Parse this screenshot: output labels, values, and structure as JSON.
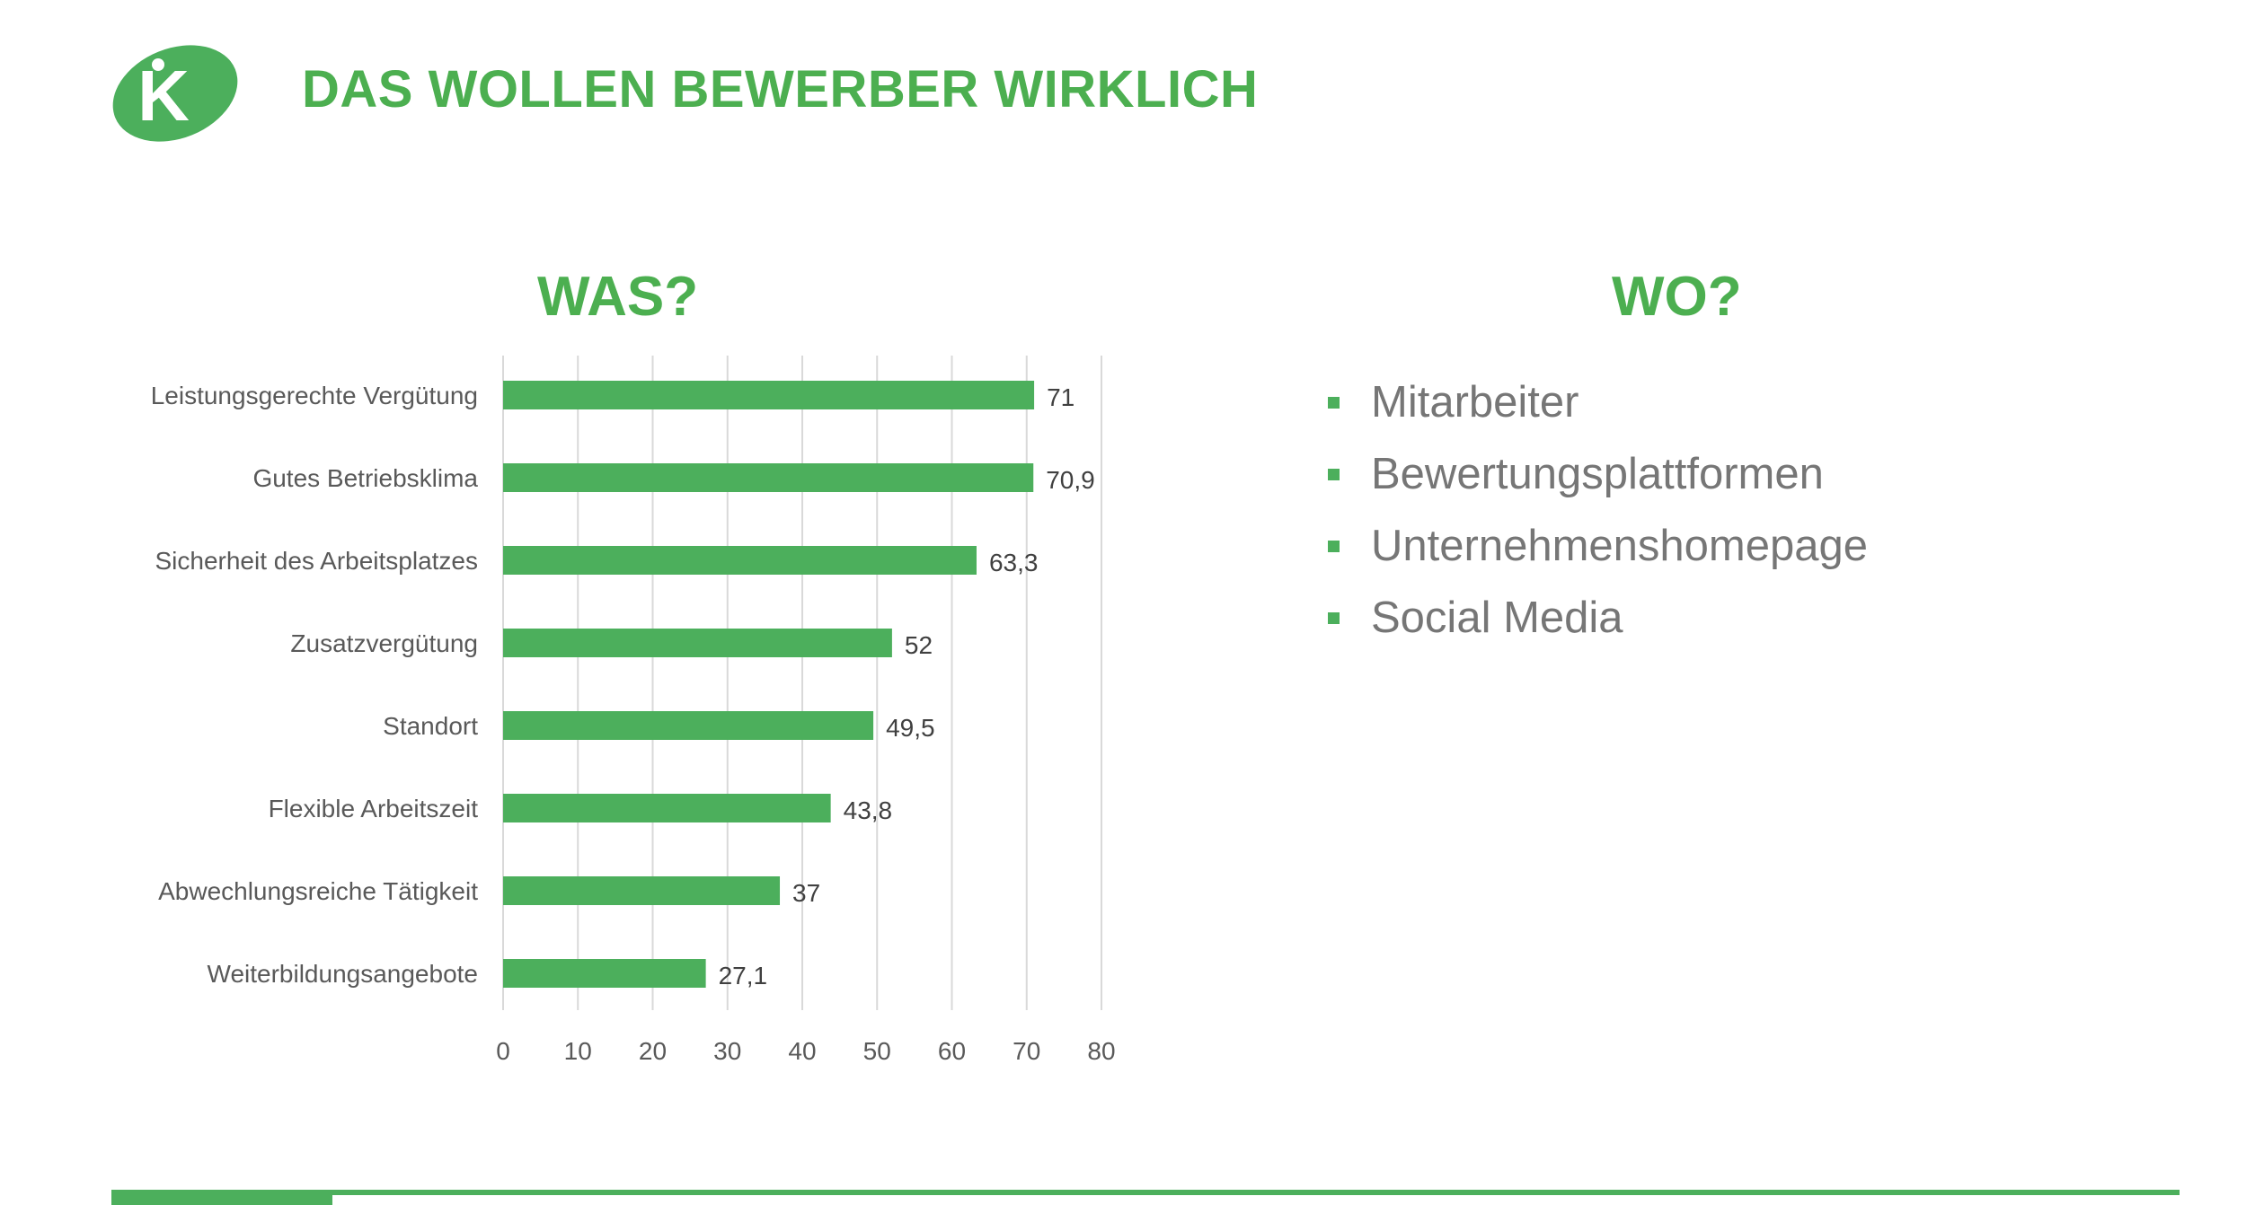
{
  "header": {
    "title": "DAS WOLLEN BEWERBER WIRKLICH",
    "logo_letter": "K"
  },
  "colors": {
    "brand_green": "#4CAF5C",
    "title_green": "#4CAF50",
    "bar_green": "#4CAF5C",
    "text_gray": "#767676",
    "grid_gray": "#D9D9D9"
  },
  "was": {
    "heading": "WAS?"
  },
  "wo": {
    "heading": "WO?",
    "items": [
      "Mitarbeiter",
      "Bewertungsplattformen",
      "Unternehmenshomepage",
      "Social Media"
    ]
  },
  "chart_data": {
    "type": "bar",
    "orientation": "horizontal",
    "categories": [
      "Leistungsgerechte Vergütung",
      "Gutes Betriebsklima",
      "Sicherheit des Arbeitsplatzes",
      "Zusatzvergütung",
      "Standort",
      "Flexible Arbeitszeit",
      "Abwechlungsreiche Tätigkeit",
      "Weiterbildungsangebote"
    ],
    "values": [
      71,
      70.9,
      63.3,
      52,
      49.5,
      43.8,
      37,
      27.1
    ],
    "value_labels": [
      "71",
      "70,9",
      "63,3",
      "52",
      "49,5",
      "43,8",
      "37",
      "27,1"
    ],
    "xlim": [
      0,
      80
    ],
    "xticks": [
      0,
      10,
      20,
      30,
      40,
      50,
      60,
      70,
      80
    ],
    "grid": true,
    "legend": false,
    "title": "",
    "xlabel": "",
    "ylabel": ""
  }
}
